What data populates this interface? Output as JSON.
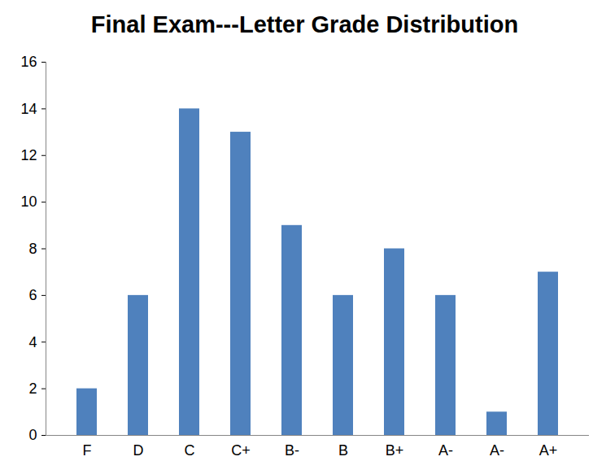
{
  "chart_data": {
    "type": "bar",
    "title": "Final Exam---Letter Grade Distribution",
    "categories": [
      "F",
      "D",
      "C",
      "C+",
      "B-",
      "B",
      "B+",
      "A-",
      "A-",
      "A+"
    ],
    "values": [
      2,
      6,
      14,
      13,
      9,
      6,
      8,
      6,
      1,
      7
    ],
    "color": "#4f81bd",
    "ylim": [
      0,
      16
    ],
    "yticks": [
      0,
      2,
      4,
      6,
      8,
      10,
      12,
      14,
      16
    ],
    "grid": false
  }
}
